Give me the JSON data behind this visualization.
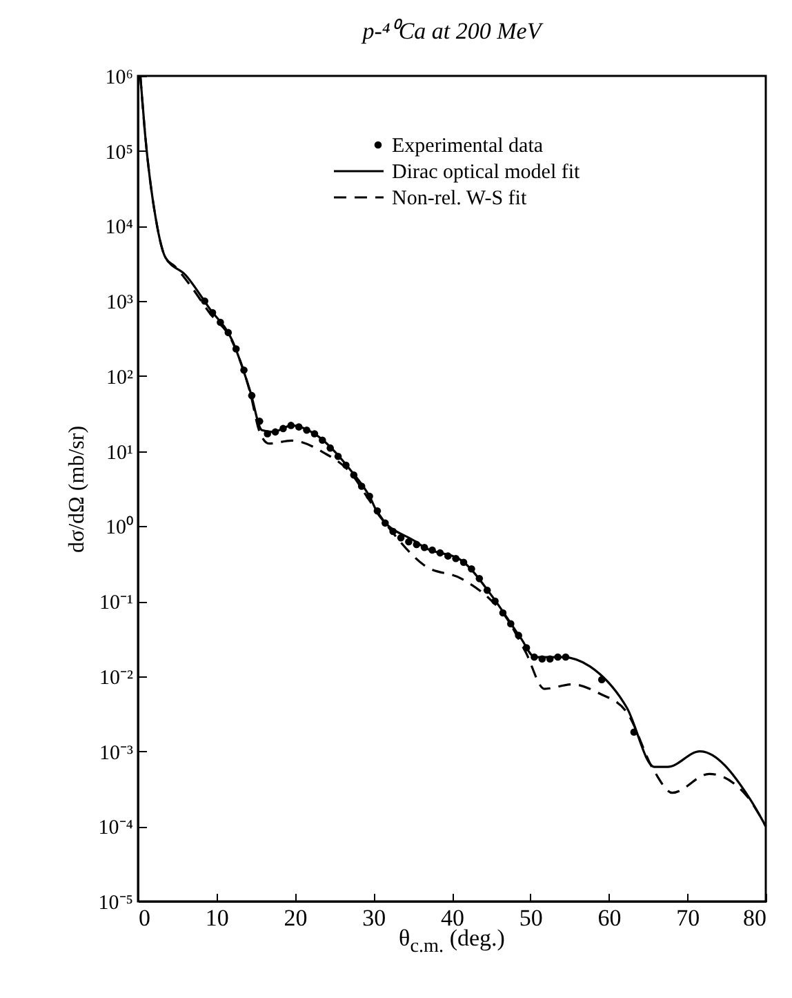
{
  "chart_data": {
    "type": "line",
    "title": "p-⁴⁰Ca at 200 MeV",
    "xlabel": "θ$_{c.m.}$ (deg.)",
    "ylabel": "dσ/dΩ (mb/sr)",
    "log": "y",
    "legend": "top right",
    "xlim": [
      0,
      80
    ],
    "xticks": [
      0,
      10,
      20,
      30,
      40,
      50,
      60,
      70,
      80
    ],
    "ylim": [
      1e-05,
      1000000
    ],
    "yticks": [
      {
        "value": 1e-05,
        "label": "10⁻⁵"
      },
      {
        "value": 0.0001,
        "label": "10⁻⁴"
      },
      {
        "value": 0.001,
        "label": "10⁻³"
      },
      {
        "value": 0.01,
        "label": "10⁻²"
      },
      {
        "value": 0.1,
        "label": "10⁻¹"
      },
      {
        "value": 1,
        "label": "10⁰"
      },
      {
        "value": 10,
        "label": "10¹"
      },
      {
        "value": 100,
        "label": "10²"
      },
      {
        "value": 1000,
        "label": "10³"
      },
      {
        "value": 10000,
        "label": "10⁴"
      },
      {
        "value": 100000,
        "label": "10⁵"
      },
      {
        "value": 1000000,
        "label": "10⁶"
      }
    ],
    "series": [
      {
        "name": "Experimental data",
        "type": "scatter",
        "marker": "circle",
        "color": "#000000",
        "x": [
          8.5,
          9.5,
          10.5,
          11.5,
          12.5,
          13.5,
          14.5,
          15.5,
          16.5,
          17.5,
          18.5,
          19.5,
          20.5,
          21.5,
          22.5,
          23.5,
          24.5,
          25.5,
          26.5,
          27.5,
          28.5,
          29.5,
          30.5,
          31.5,
          32.5,
          33.5,
          34.5,
          35.5,
          36.5,
          37.5,
          38.5,
          39.5,
          40.5,
          41.5,
          42.5,
          43.5,
          44.5,
          45.5,
          46.5,
          47.5,
          48.5,
          49.5,
          50.5,
          51.5,
          52.5,
          53.5,
          54.5,
          59.1,
          63.2
        ],
        "values": [
          1000,
          700,
          520,
          380,
          230,
          120,
          55,
          25,
          17,
          18,
          20,
          22,
          21,
          19,
          17,
          14,
          11,
          8.5,
          6.5,
          4.8,
          3.4,
          2.5,
          1.6,
          1.1,
          0.85,
          0.7,
          0.62,
          0.57,
          0.52,
          0.48,
          0.44,
          0.4,
          0.37,
          0.33,
          0.27,
          0.2,
          0.14,
          0.1,
          0.07,
          0.05,
          0.035,
          0.024,
          0.018,
          0.017,
          0.017,
          0.018,
          0.018,
          0.009,
          0.0018
        ]
      },
      {
        "name": "Dirac optical model fit",
        "type": "line",
        "line_style": "solid",
        "color": "#000000",
        "x": [
          0.3,
          0.9,
          2.3,
          3.5,
          6.1,
          9.1,
          12.0,
          14.3,
          15.8,
          17.2,
          19.6,
          22.5,
          27.2,
          29.5,
          30.7,
          35.4,
          36.5,
          41.2,
          45.3,
          48.8,
          50.6,
          54.1,
          57.6,
          62.3,
          65.8,
          67.5,
          71.6,
          78,
          80
        ],
        "values": [
          1000000,
          170000,
          12000,
          3800,
          2200,
          800,
          300,
          63,
          19,
          18,
          22,
          17,
          5.4,
          2.5,
          1.4,
          0.62,
          0.52,
          0.35,
          0.11,
          0.032,
          0.018,
          0.018,
          0.0135,
          0.0038,
          0.00062,
          0.00062,
          0.001,
          0.00023,
          0.0001
        ]
      },
      {
        "name": "Non-rel. W-S fit",
        "type": "line",
        "line_style": "dashed",
        "color": "#000000",
        "x": [
          0.3,
          0.9,
          2.3,
          3.5,
          4.7,
          6.7,
          9.1,
          12.0,
          14.3,
          15.5,
          16.7,
          19.6,
          23.7,
          27.2,
          29.5,
          32.5,
          36.5,
          41.2,
          44.7,
          46.5,
          49.4,
          51.8,
          55.3,
          58.8,
          62.3,
          65.8,
          68.1,
          72.8,
          77.5,
          80
        ],
        "values": [
          1000000,
          170000,
          12000,
          3800,
          2900,
          1600,
          700,
          290,
          60,
          18,
          12.6,
          13.8,
          9.5,
          5,
          2.2,
          0.81,
          0.3,
          0.2,
          0.11,
          0.07,
          0.021,
          0.0068,
          0.0078,
          0.0059,
          0.0033,
          0.00054,
          0.00028,
          0.0005,
          0.00026,
          0.0001
        ]
      }
    ]
  }
}
